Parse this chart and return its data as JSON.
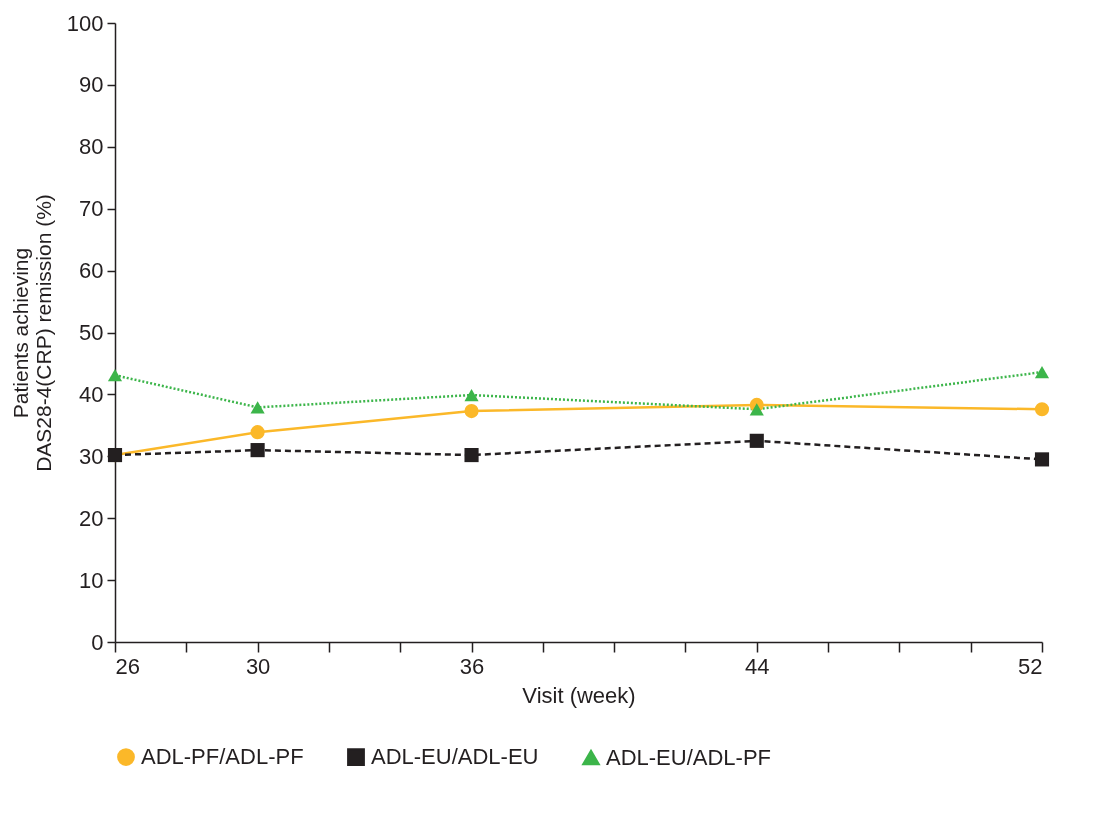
{
  "chart_data": {
    "type": "line",
    "xlabel": "Visit (week)",
    "ylabel": "Patients achieving\nDAS28-4(CRP) remission (%)",
    "x": [
      26,
      30,
      36,
      44,
      52
    ],
    "xlim": [
      26,
      52
    ],
    "xticks": [
      26,
      {
        "value": 28,
        "label": null
      },
      30,
      {
        "value": 32,
        "label": null
      },
      {
        "value": 34,
        "label": null
      },
      36,
      {
        "value": 38,
        "label": null
      },
      {
        "value": 40,
        "label": null
      },
      {
        "value": 42,
        "label": null
      },
      44,
      {
        "value": 46,
        "label": null
      },
      {
        "value": 48,
        "label": null
      },
      {
        "value": 50,
        "label": null
      },
      52
    ],
    "ylim": [
      0,
      100
    ],
    "yticks": [
      0,
      10,
      20,
      30,
      40,
      50,
      60,
      70,
      80,
      90,
      100
    ],
    "grid": false,
    "legend": "bottom",
    "series": [
      {
        "name": "ADL-PF/ADL-PF",
        "color": "#fbb829",
        "marker": "circle",
        "line_style": "solid",
        "values": [
          30.2,
          33.9,
          37.3,
          38.3,
          37.6
        ]
      },
      {
        "name": "ADL-EU/ADL-EU",
        "color": "#231f20",
        "marker": "square",
        "line_style": "dashed",
        "values": [
          30.2,
          31.0,
          30.2,
          32.5,
          29.5
        ]
      },
      {
        "name": "ADL-EU/ADL-PF",
        "color": "#3cb54a",
        "marker": "triangle",
        "line_style": "dotted",
        "values": [
          43.1,
          37.9,
          39.9,
          37.6,
          43.6
        ]
      }
    ]
  }
}
